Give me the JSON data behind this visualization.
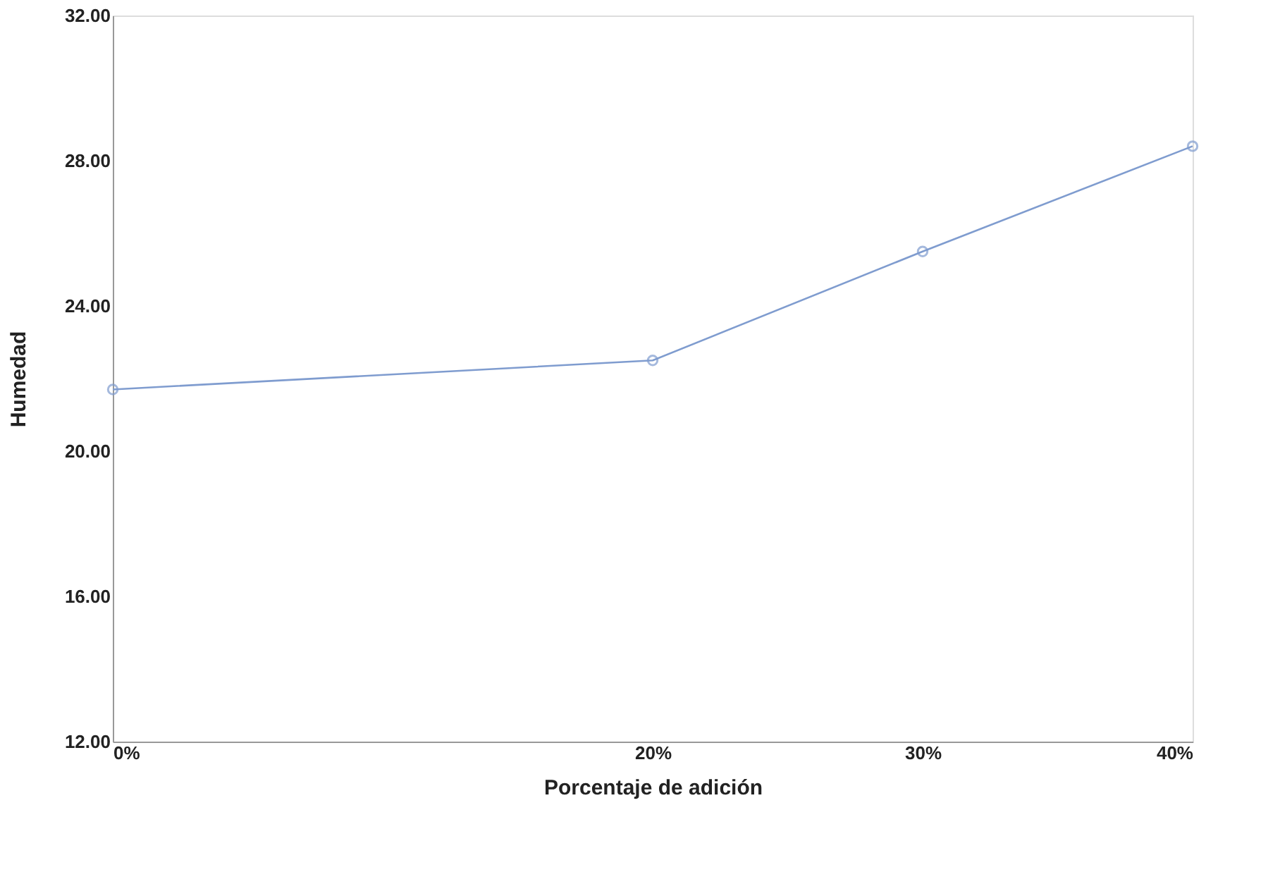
{
  "chart_data": {
    "type": "line",
    "xlabel": "Porcentaje de adición",
    "ylabel": "Humedad",
    "x": [
      0,
      20,
      30,
      40
    ],
    "series": [
      {
        "color": "#7f9ccf",
        "values": [
          21.7,
          22.5,
          25.5,
          28.4
        ]
      }
    ],
    "xlim": [
      0,
      40
    ],
    "xticks": [
      {
        "value": 0,
        "label": "0%"
      },
      {
        "value": 20,
        "label": "20%"
      },
      {
        "value": 30,
        "label": "30%"
      },
      {
        "value": 40,
        "label": "40%"
      }
    ],
    "ylim": [
      12,
      32
    ],
    "yticks": [
      {
        "value": 12,
        "label": "12.00"
      },
      {
        "value": 16,
        "label": "16.00"
      },
      {
        "value": 20,
        "label": "20.00"
      },
      {
        "value": 24,
        "label": "24.00"
      },
      {
        "value": 28,
        "label": "28.00"
      },
      {
        "value": 32,
        "label": "32.00"
      }
    ],
    "grid": false,
    "marker": "circle",
    "line_style": "solid"
  }
}
